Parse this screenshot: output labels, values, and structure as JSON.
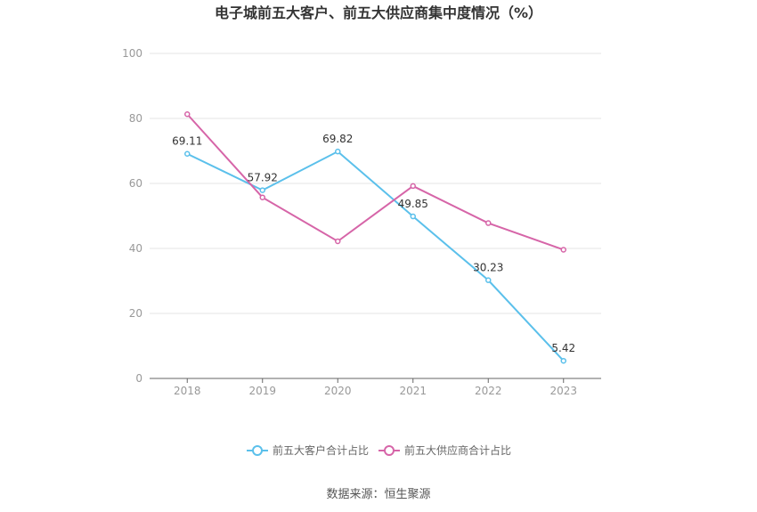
{
  "chart_data": {
    "type": "line",
    "title": "电子城前五大客户、前五大供应商集中度情况（%）",
    "categories": [
      "2018",
      "2019",
      "2020",
      "2021",
      "2022",
      "2023"
    ],
    "ylim": [
      0,
      100
    ],
    "yticks": [
      "0",
      "20",
      "40",
      "60",
      "80",
      "100"
    ],
    "grid": true,
    "legend_position": "bottom",
    "series": [
      {
        "name": "前五大客户合计占比",
        "color": "#5bc0eb",
        "values": [
          69.11,
          57.92,
          69.82,
          49.85,
          30.23,
          5.42
        ],
        "labels": [
          "69.11",
          "57.92",
          "69.82",
          "49.85",
          "30.23",
          "5.42"
        ]
      },
      {
        "name": "前五大供应商合计占比",
        "color": "#d665a8",
        "values": [
          81.3,
          55.7,
          42.2,
          59.2,
          47.8,
          39.6
        ]
      }
    ]
  },
  "source": "数据来源：恒生聚源"
}
